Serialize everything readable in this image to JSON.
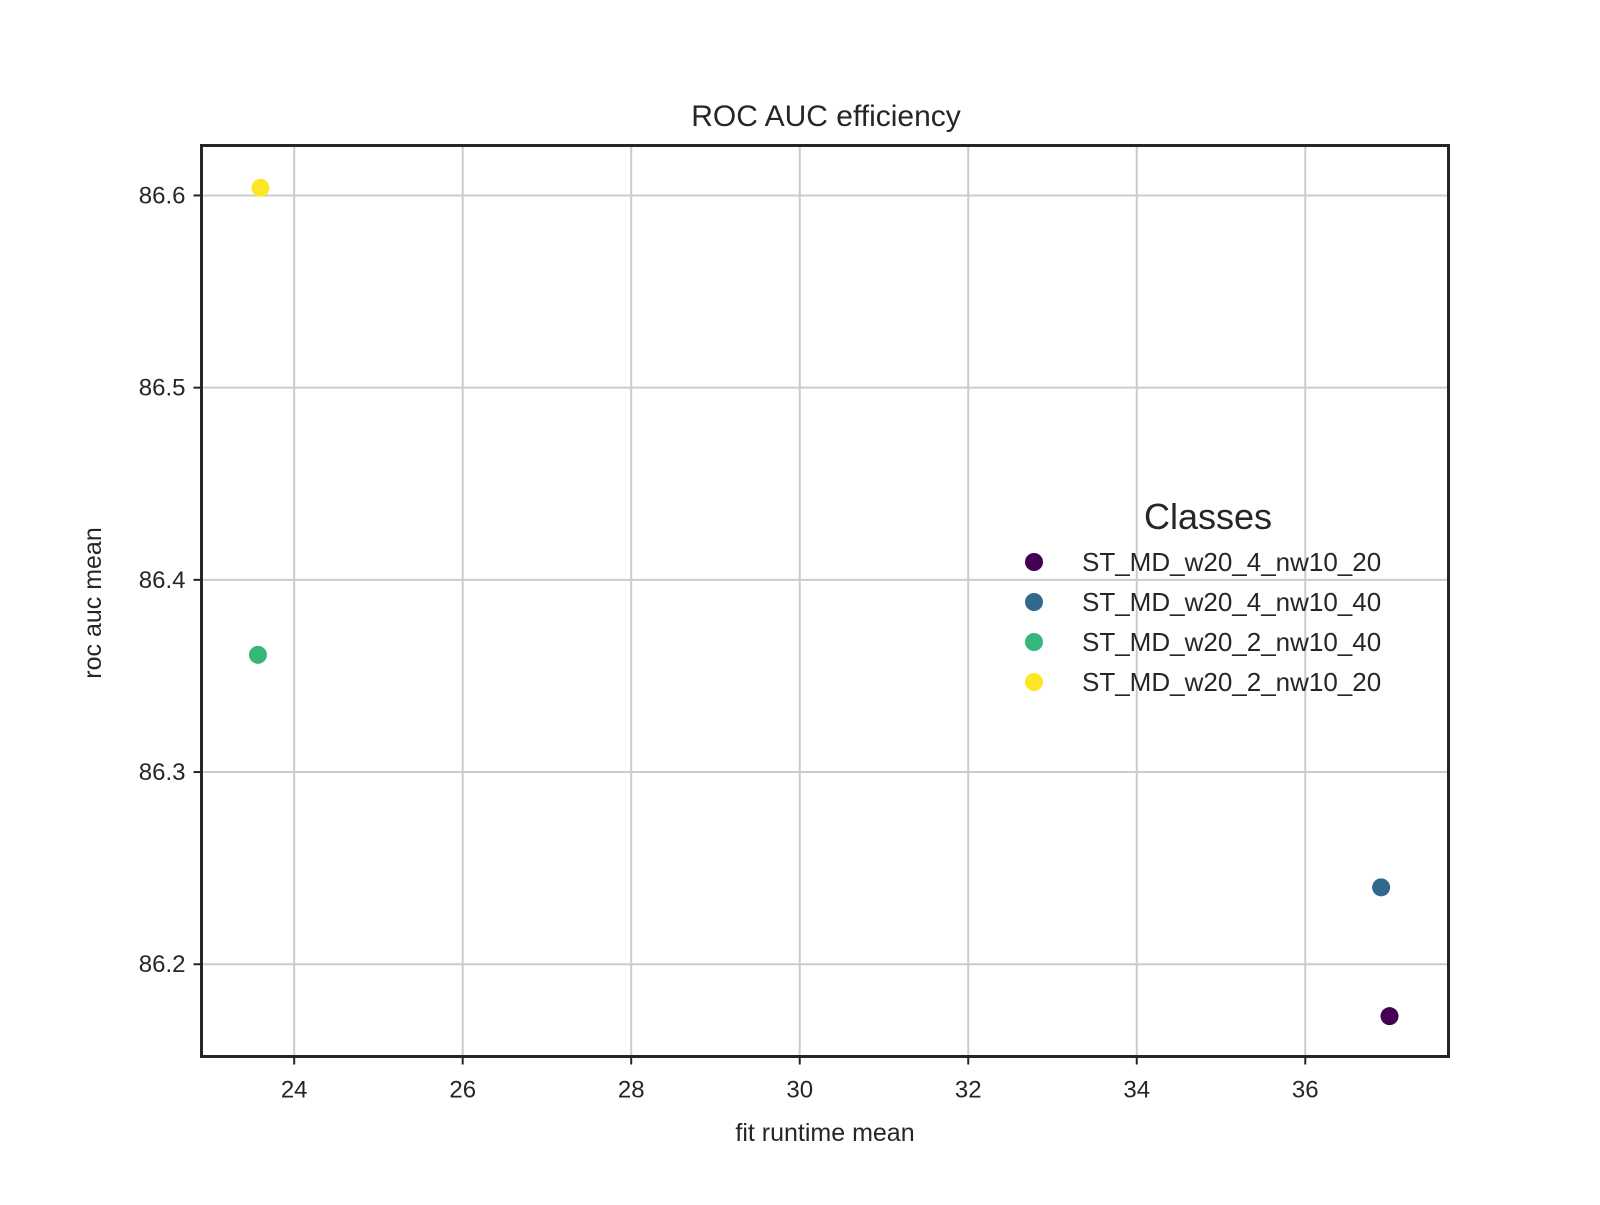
{
  "chart_data": {
    "type": "scatter",
    "title": "ROC AUC efficiency",
    "xlabel": "fit runtime mean",
    "ylabel": "roc auc mean",
    "xlim": [
      22.9,
      37.7
    ],
    "ylim": [
      86.152,
      86.626
    ],
    "x_ticks": [
      24,
      26,
      28,
      30,
      32,
      34,
      36
    ],
    "y_ticks": [
      86.2,
      86.3,
      86.4,
      86.5,
      86.6
    ],
    "grid": true,
    "legend": {
      "title": "Classes",
      "placement": "center-right"
    },
    "series": [
      {
        "name": "ST_MD_w20_4_nw10_20",
        "color": "#440154",
        "points": [
          {
            "x": 37.0,
            "y": 86.173
          }
        ]
      },
      {
        "name": "ST_MD_w20_4_nw10_40",
        "color": "#31688e",
        "points": [
          {
            "x": 36.9,
            "y": 86.24
          }
        ]
      },
      {
        "name": "ST_MD_w20_2_nw10_40",
        "color": "#35b779",
        "points": [
          {
            "x": 23.57,
            "y": 86.361
          }
        ]
      },
      {
        "name": "ST_MD_w20_2_nw10_20",
        "color": "#fde725",
        "points": [
          {
            "x": 23.6,
            "y": 86.604
          }
        ]
      }
    ]
  }
}
